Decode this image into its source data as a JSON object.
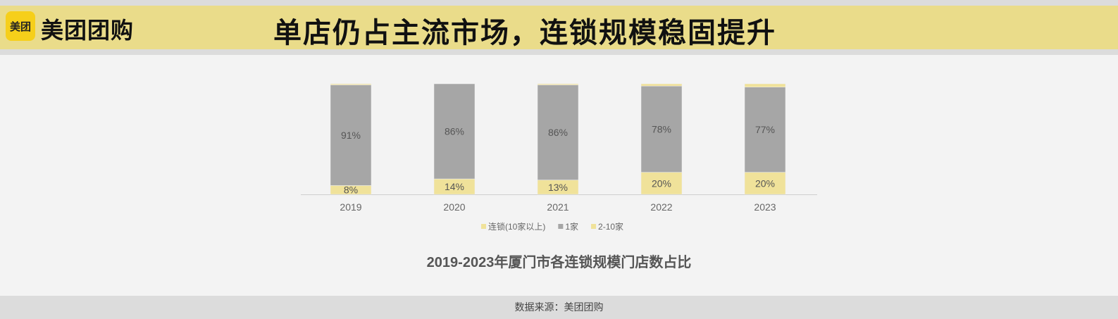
{
  "header": {
    "logo_text": "美团",
    "brand": "美团团购",
    "title": "单店仍占主流市场，连锁规模稳固提升",
    "background": "#eadc8a"
  },
  "chart_data": {
    "type": "bar",
    "stacked": true,
    "title": "2019-2023年厦门市各连锁规模门店数占比",
    "categories": [
      "2019",
      "2020",
      "2021",
      "2022",
      "2023"
    ],
    "ylim": [
      0,
      100
    ],
    "grid": false,
    "legend_position": "bottom",
    "series": [
      {
        "name": "2-10家",
        "color": "#f0e29a",
        "values": [
          8,
          14,
          13,
          20,
          20
        ],
        "labels": [
          "8%",
          "14%",
          "13%",
          "20%",
          "20%"
        ]
      },
      {
        "name": "1家",
        "color": "#a6a6a6",
        "values": [
          91,
          86,
          86,
          78,
          77
        ],
        "labels": [
          "91%",
          "86%",
          "86%",
          "78%",
          "77%"
        ]
      },
      {
        "name": "连锁(10家以上)",
        "color": "#f0e29a",
        "values": [
          1,
          0,
          1,
          2,
          3
        ]
      }
    ],
    "legend_order": [
      "连锁(10家以上)",
      "1家",
      "2-10家"
    ]
  },
  "footer": {
    "source": "数据来源：美团团购"
  }
}
